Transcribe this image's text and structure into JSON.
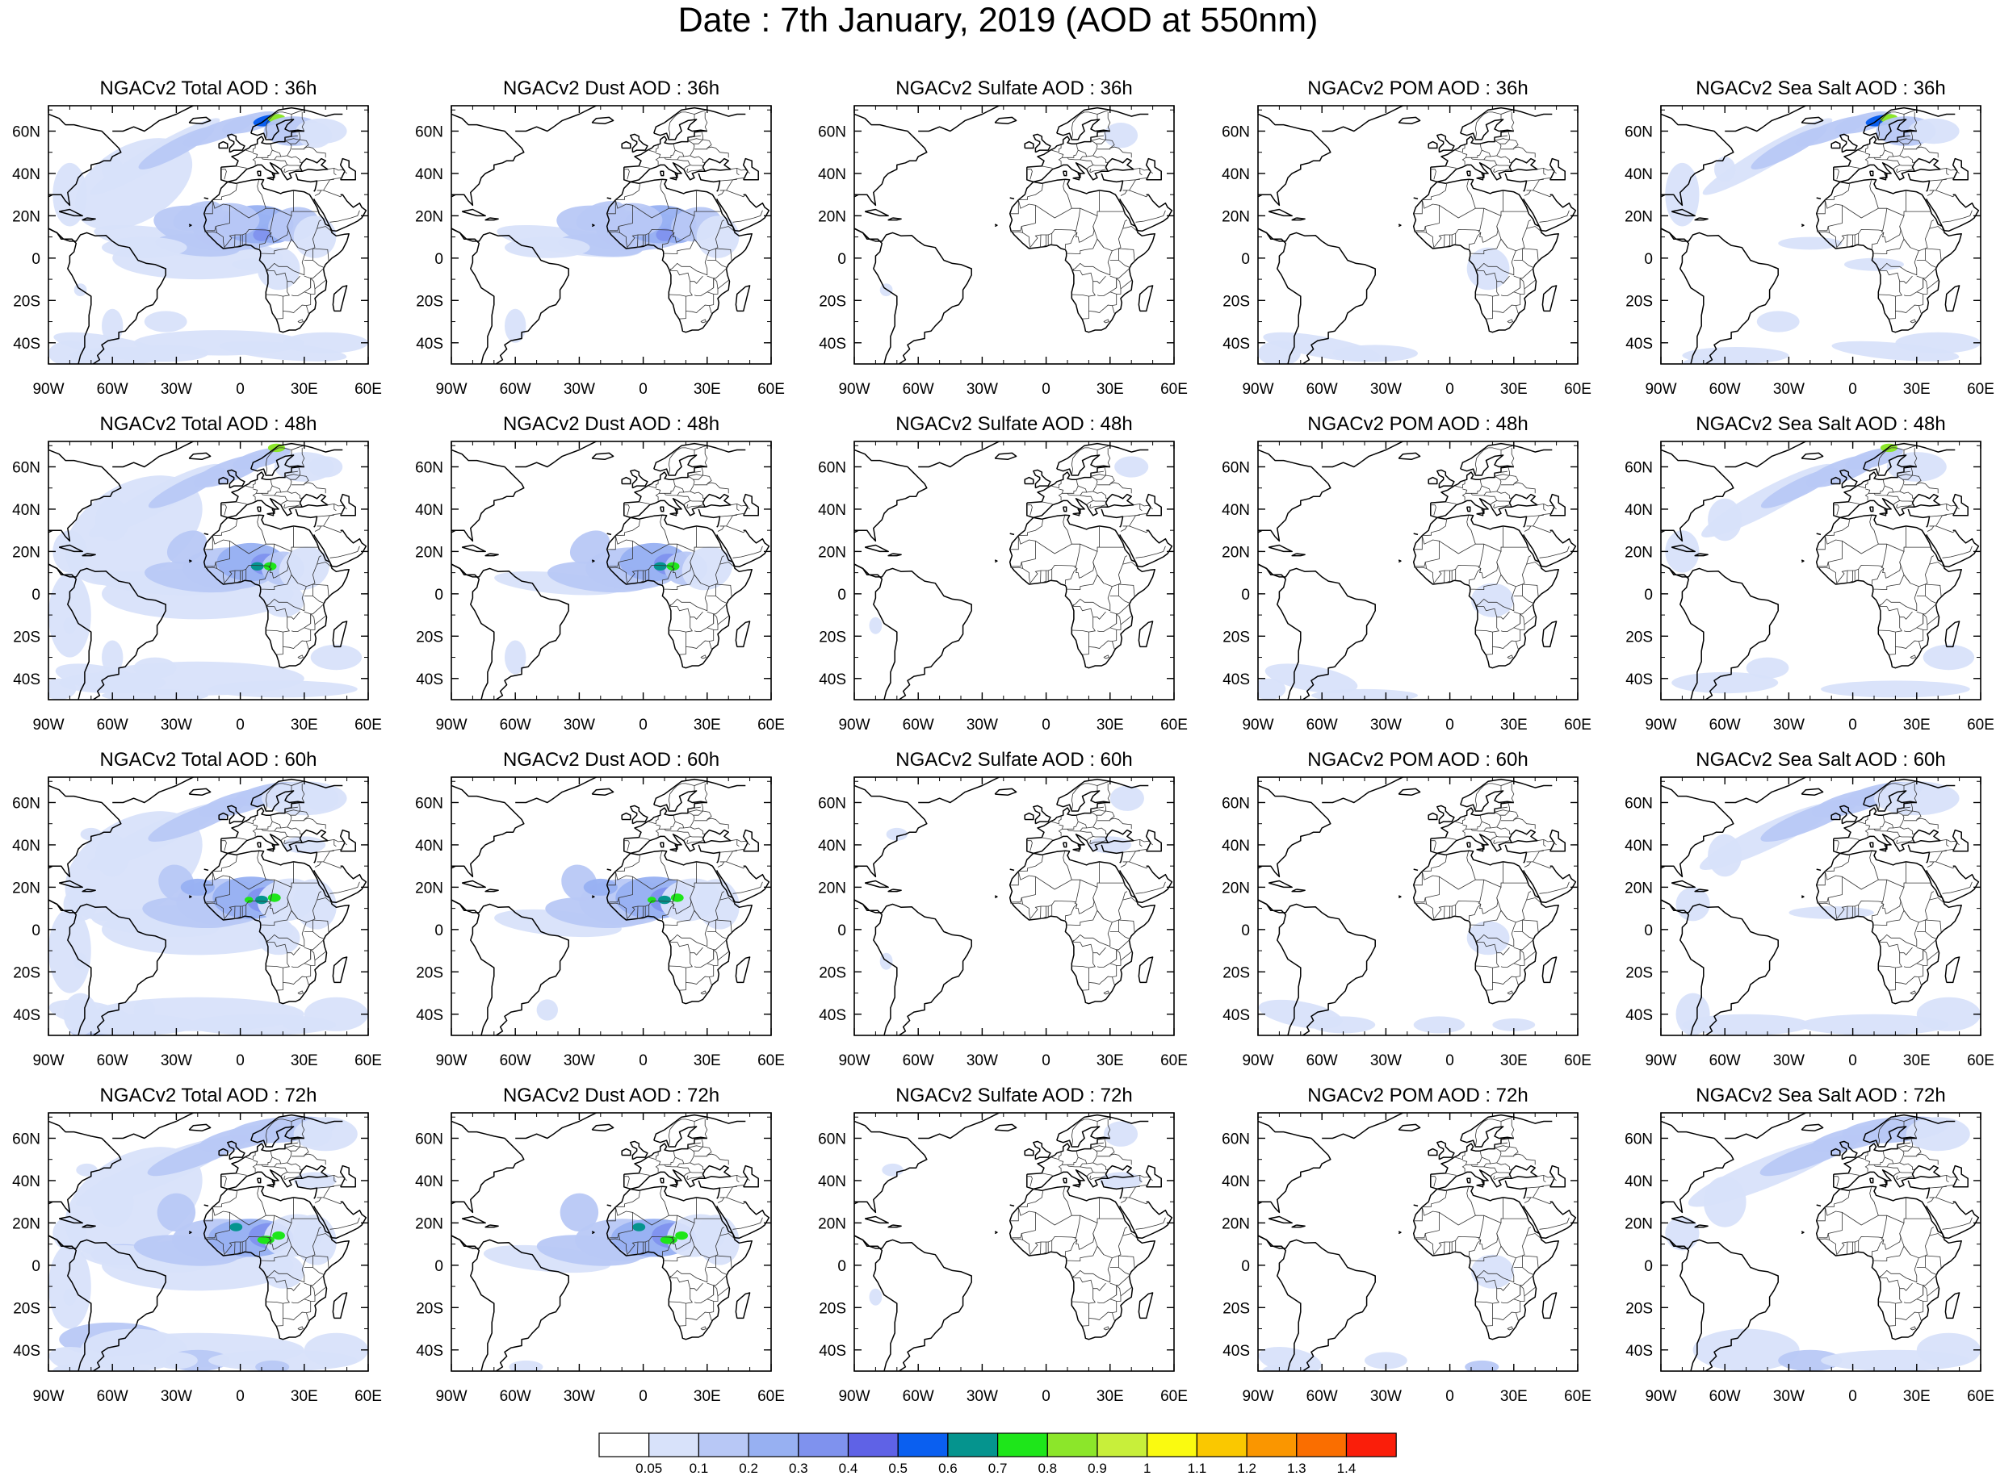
{
  "title": "Date : 7th January, 2019 (AOD at 550nm)",
  "panel_titles": [
    [
      "NGACv2 Total AOD : 36h",
      "NGACv2 Dust AOD : 36h",
      "NGACv2 Sulfate AOD : 36h",
      "NGACv2 POM AOD : 36h",
      "NGACv2 Sea Salt AOD : 36h"
    ],
    [
      "NGACv2 Total AOD : 48h",
      "NGACv2 Dust AOD : 48h",
      "NGACv2 Sulfate AOD : 48h",
      "NGACv2 POM AOD : 48h",
      "NGACv2 Sea Salt AOD : 48h"
    ],
    [
      "NGACv2 Total AOD : 60h",
      "NGACv2 Dust AOD : 60h",
      "NGACv2 Sulfate AOD : 60h",
      "NGACv2 POM AOD : 60h",
      "NGACv2 Sea Salt AOD : 60h"
    ],
    [
      "NGACv2 Total AOD : 72h",
      "NGACv2 Dust AOD : 72h",
      "NGACv2 Sulfate AOD : 72h",
      "NGACv2 POM AOD : 72h",
      "NGACv2 Sea Salt  AOD : 72h"
    ]
  ],
  "lat_labels": [
    "60N",
    "40N",
    "20N",
    "0",
    "20S",
    "40S"
  ],
  "lon_labels": [
    "90W",
    "60W",
    "30W",
    "0",
    "30E",
    "60E"
  ],
  "colorbar": {
    "labels": [
      "0.05",
      "0.1",
      "0.2",
      "0.3",
      "0.4",
      "0.5",
      "0.6",
      "0.7",
      "0.8",
      "0.9",
      "1",
      "1.1",
      "1.2",
      "1.3",
      "1.4"
    ],
    "colors": [
      "#ffffff",
      "#d8e2fa",
      "#b8c8f6",
      "#97b0f2",
      "#7f92ee",
      "#5f62e6",
      "#0a5ff0",
      "#05948e",
      "#1ee61a",
      "#8ce62a",
      "#c8ef3a",
      "#fafa10",
      "#fac800",
      "#fa9600",
      "#fa6e00",
      "#fa1e0a"
    ]
  }
}
